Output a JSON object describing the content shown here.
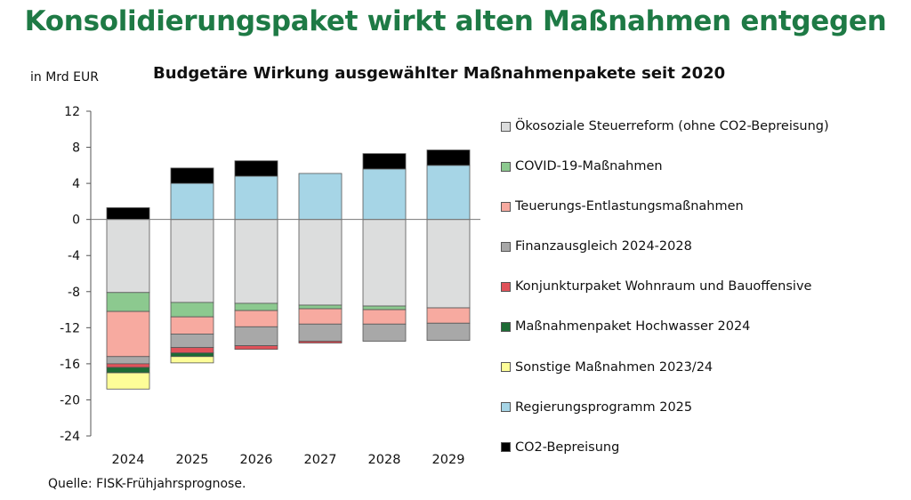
{
  "headline": "Konsolidierungspaket wirkt alten Maßnahmen entgegen",
  "unit_label": "in Mrd EUR",
  "source": "Quelle: FISK-Frühjahrsprognose.",
  "chart_data": {
    "type": "bar",
    "stacked": true,
    "title": "Budgetäre Wirkung ausgewählter Maßnahmenpakete seit 2020",
    "ylabel": "in Mrd EUR",
    "categories": [
      "2024",
      "2025",
      "2026",
      "2027",
      "2028",
      "2029"
    ],
    "ylim": [
      -24,
      12
    ],
    "yticks": [
      12,
      8,
      4,
      0,
      -4,
      -8,
      -12,
      -16,
      -20,
      -24
    ],
    "grid": false,
    "legend_position": "right",
    "series": [
      {
        "name": "Ökosoziale Steuerreform (ohne CO2-Bepreisung)",
        "color": "#dcdddd",
        "values": [
          -8.1,
          -9.2,
          -9.3,
          -9.5,
          -9.6,
          -9.8
        ]
      },
      {
        "name": "COVID-19-Maßnahmen",
        "color": "#8cc98f",
        "values": [
          -2.1,
          -1.6,
          -0.8,
          -0.4,
          -0.4,
          0
        ]
      },
      {
        "name": "Teuerungs-Entlastungsmaßnahmen",
        "color": "#f7aaa0",
        "values": [
          -5.0,
          -1.9,
          -1.8,
          -1.7,
          -1.6,
          -1.7
        ]
      },
      {
        "name": "Finanzausgleich 2024-2028",
        "color": "#a8a8a8",
        "values": [
          -0.8,
          -1.5,
          -2.1,
          -1.9,
          -1.9,
          -1.9
        ]
      },
      {
        "name": "Konjunkturpaket Wohnraum und Bauoffensive",
        "color": "#e0525a",
        "values": [
          -0.4,
          -0.6,
          -0.4,
          -0.2,
          0,
          0
        ]
      },
      {
        "name": "Maßnahmenpaket Hochwasser 2024",
        "color": "#1d6b35",
        "values": [
          -0.6,
          -0.4,
          0,
          0,
          0,
          0
        ]
      },
      {
        "name": "Sonstige Maßnahmen 2023/24",
        "color": "#fdfd98",
        "values": [
          -1.8,
          -0.7,
          0,
          0,
          0,
          0
        ]
      },
      {
        "name": "Regierungsprogramm 2025",
        "color": "#a6d5e6",
        "values": [
          0,
          4.0,
          4.8,
          5.1,
          5.6,
          6.0
        ]
      },
      {
        "name": "CO2-Bepreisung",
        "color": "#000000",
        "values": [
          1.3,
          1.7,
          1.7,
          0,
          1.7,
          1.7
        ]
      }
    ]
  }
}
